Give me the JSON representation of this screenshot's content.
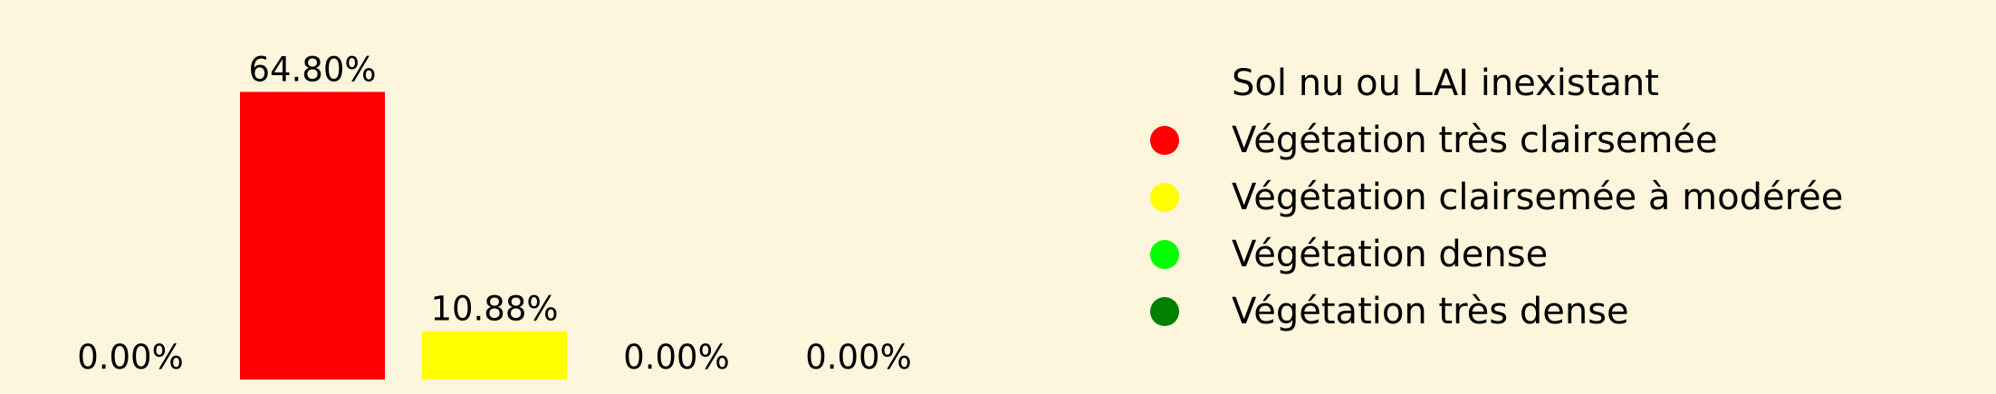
{
  "chart_data": {
    "type": "bar",
    "categories": [
      "Sol nu ou LAI inexistant",
      "Végétation très clairsemée",
      "Végétation clairsemée à modérée",
      "Végétation dense",
      "Végétation très dense"
    ],
    "values": [
      0.0,
      64.8,
      10.88,
      0.0,
      0.0
    ],
    "data_labels": [
      "0.00%",
      "64.80%",
      "10.88%",
      "0.00%",
      "0.00%"
    ],
    "colors": [
      "#fdf6dc",
      "#ff0000",
      "#ffff00",
      "#00ff00",
      "#008000"
    ],
    "ylim": [
      0,
      70
    ],
    "title": "",
    "xlabel": "",
    "ylabel": "",
    "grid": false,
    "axes_visible": false,
    "legend_position": "right"
  }
}
